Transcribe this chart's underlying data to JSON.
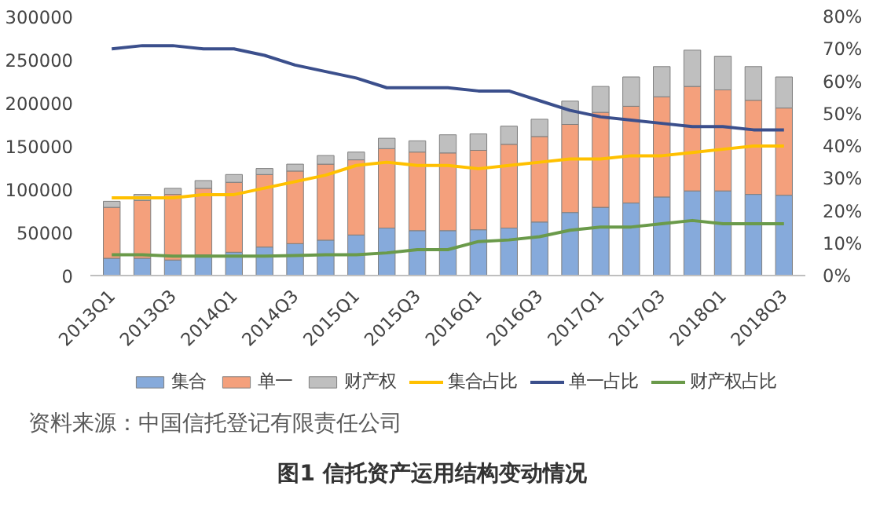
{
  "chart_data": {
    "type": "bar",
    "stacked": true,
    "title": "图1 信托资产运用结构变动情况",
    "annotations": [
      "资料来源：中国信托登记有限责任公司"
    ],
    "categories": [
      "2013Q1",
      null,
      "2013Q3",
      null,
      "2014Q1",
      null,
      "2014Q3",
      null,
      "2015Q1",
      null,
      "2015Q3",
      null,
      "2016Q1",
      null,
      "2016Q3",
      null,
      "2017Q1",
      null,
      "2017Q3",
      null,
      "2018Q1",
      null,
      "2018Q3"
    ],
    "ylim": [
      0,
      300000
    ],
    "yticks": [
      0,
      50000,
      100000,
      150000,
      200000,
      250000,
      300000
    ],
    "y2lim": [
      0,
      80
    ],
    "y2ticks": [
      {
        "value": 0,
        "label": "0%"
      },
      {
        "value": 10,
        "label": "10%"
      },
      {
        "value": 20,
        "label": "20%"
      },
      {
        "value": 30,
        "label": "30%"
      },
      {
        "value": 40,
        "label": "40%"
      },
      {
        "value": 50,
        "label": "50%"
      },
      {
        "value": 60,
        "label": "60%"
      },
      {
        "value": 70,
        "label": "70%"
      },
      {
        "value": 80,
        "label": "80%"
      }
    ],
    "grid": false,
    "legend": "bottom",
    "series": [
      {
        "name": "集合",
        "type": "bar",
        "color": "#86aadb",
        "values": [
          20000,
          20000,
          18000,
          24000,
          27000,
          33000,
          37000,
          41000,
          47000,
          55000,
          52000,
          52000,
          53000,
          55000,
          62000,
          73000,
          79000,
          84000,
          91000,
          98000,
          98000,
          94000,
          93000
        ]
      },
      {
        "name": "单一",
        "type": "bar",
        "color": "#f4a07c",
        "values": [
          59000,
          67000,
          76000,
          77000,
          81000,
          84000,
          84000,
          88000,
          87000,
          92000,
          91000,
          90000,
          92000,
          97000,
          99000,
          102000,
          110000,
          112000,
          116000,
          121000,
          117000,
          109000,
          101000
        ]
      },
      {
        "name": "财产权",
        "type": "bar",
        "color": "#bfbfbf",
        "values": [
          7000,
          7000,
          7000,
          9000,
          9000,
          7000,
          8000,
          10000,
          9000,
          12000,
          13000,
          21000,
          19000,
          21000,
          20000,
          27000,
          30000,
          34000,
          35000,
          42000,
          39000,
          39000,
          36000
        ]
      },
      {
        "name": "集合占比",
        "type": "line",
        "axis": "y2",
        "color": "#ffc000",
        "values": [
          24,
          24,
          24,
          25,
          25,
          27,
          29,
          31,
          34,
          35,
          34,
          34,
          33,
          34,
          35,
          36,
          36,
          37,
          37,
          38,
          39,
          40,
          40
        ]
      },
      {
        "name": "单一占比",
        "type": "line",
        "axis": "y2",
        "color": "#3b4f8c",
        "values": [
          70,
          71,
          71,
          70,
          70,
          68,
          65,
          63,
          61,
          58,
          58,
          58,
          57,
          57,
          54,
          51,
          49,
          48,
          47,
          46,
          46,
          45,
          45
        ]
      },
      {
        "name": "财产权占比",
        "type": "line",
        "axis": "y2",
        "color": "#6a9a4a",
        "values": [
          6.4,
          6.4,
          6,
          6,
          6,
          6,
          6.2,
          6.4,
          6.4,
          7,
          8,
          8,
          10.5,
          11,
          12,
          14,
          15,
          15,
          16,
          17,
          16,
          16,
          16
        ]
      }
    ]
  }
}
